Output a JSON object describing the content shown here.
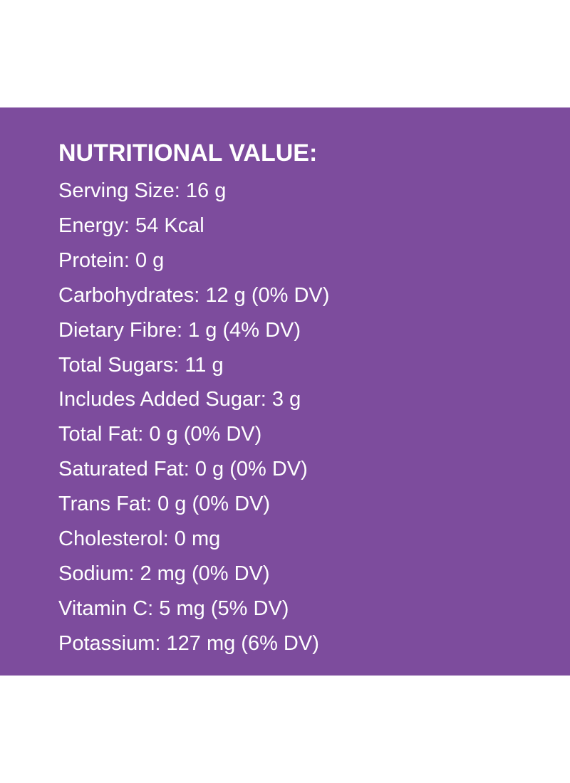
{
  "colors": {
    "panel_background": "#7d4c9d",
    "page_background": "#ffffff",
    "text": "#ffffff"
  },
  "nutrition": {
    "title": "NUTRITIONAL VALUE:",
    "facts": [
      "Serving Size: 16 g",
      "Energy: 54 Kcal",
      "Protein: 0 g",
      "Carbohydrates: 12 g (0% DV)",
      "Dietary Fibre: 1 g (4% DV)",
      "Total Sugars: 11 g",
      "Includes Added Sugar: 3 g",
      "Total Fat: 0 g (0% DV)",
      "Saturated Fat: 0 g (0% DV)",
      "Trans Fat: 0 g (0% DV)",
      "Cholesterol: 0 mg",
      "Sodium: 2 mg (0% DV)",
      "Vitamin C: 5 mg (5% DV)",
      "Potassium: 127 mg (6% DV)"
    ]
  }
}
